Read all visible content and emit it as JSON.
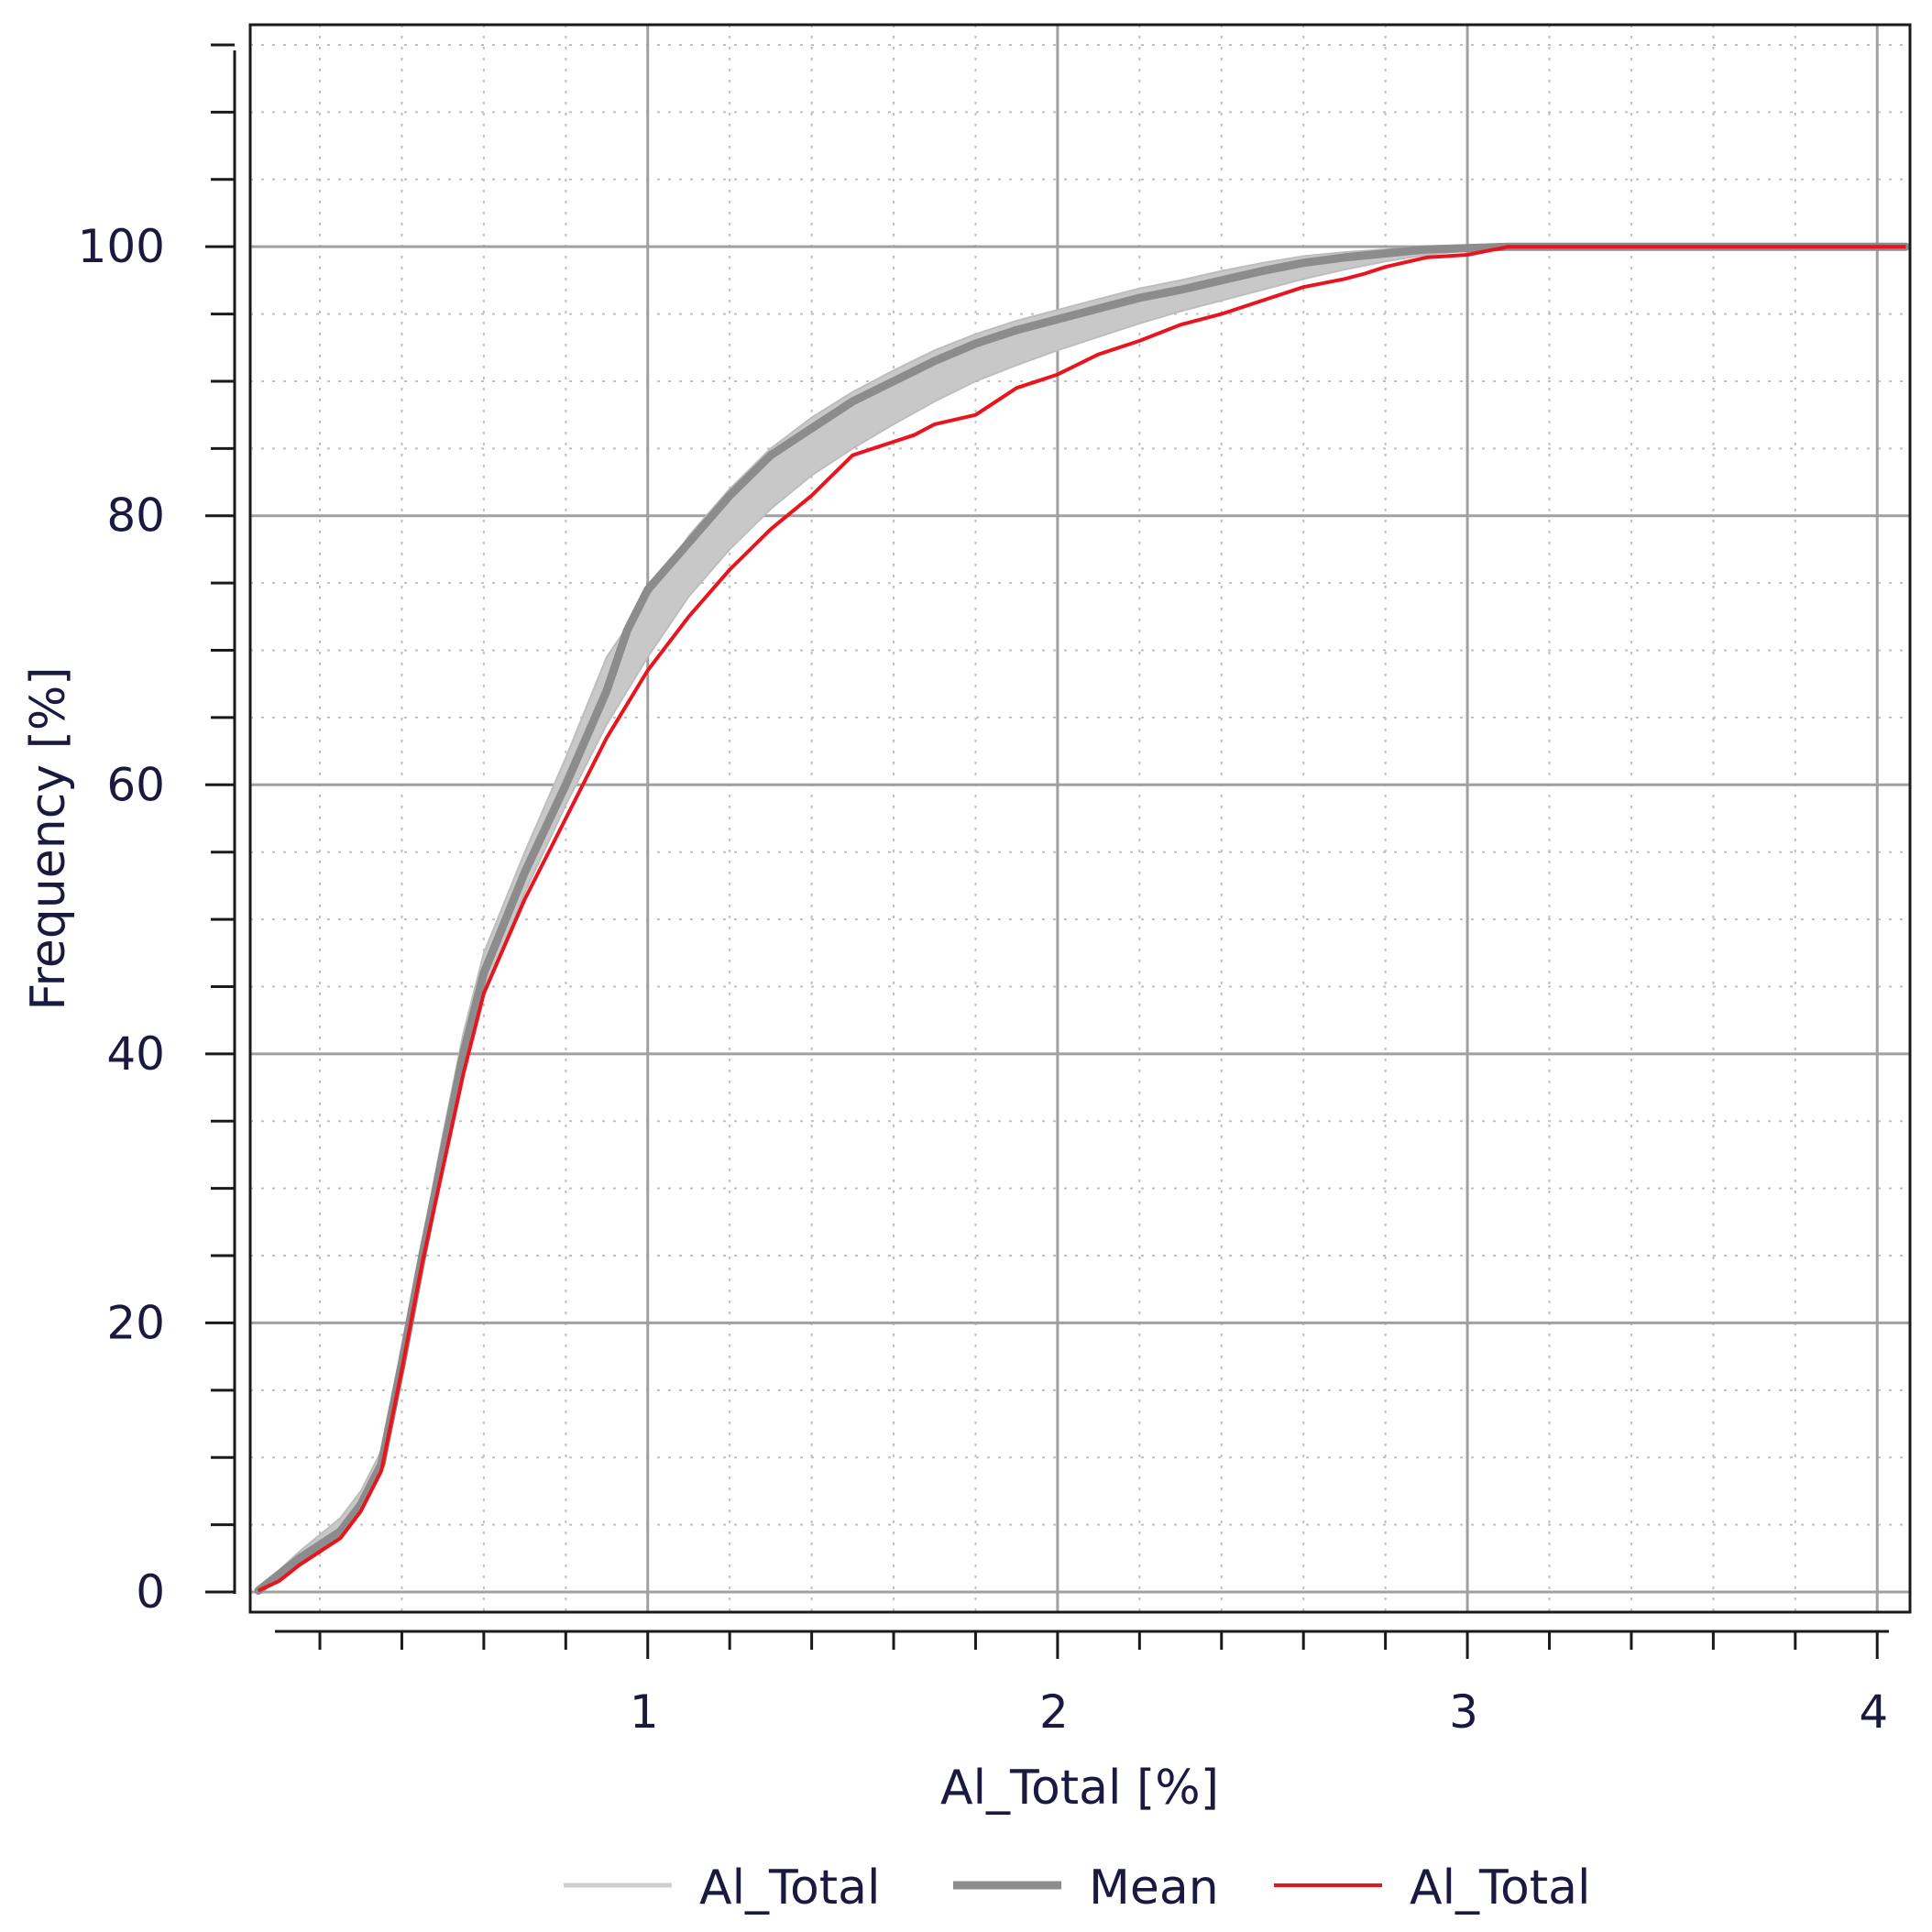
{
  "chart_data": {
    "type": "line",
    "title": "",
    "xlabel": "Al_Total [%]",
    "ylabel": "Frequency [%]",
    "xlim": [
      0.03,
      4.08
    ],
    "ylim": [
      -1.5,
      116.5
    ],
    "x_ticks": [
      1,
      2,
      3,
      4
    ],
    "y_ticks": [
      0,
      20,
      40,
      60,
      80,
      100
    ],
    "x_minor_step": 0.2,
    "y_minor_step": 5,
    "grid": true,
    "legend_position": "bottom",
    "colors": {
      "band": "#c8c8c8",
      "mean": "#8c8c8c",
      "sample": "#e8141e",
      "grid_major": "#a0a0a0",
      "grid_minor": "#c0c0c0"
    },
    "legend": [
      {
        "label": "Al_Total",
        "color": "#cfcfcf",
        "width": 5
      },
      {
        "label": "Mean",
        "color": "#8c8c8c",
        "width": 9
      },
      {
        "label": "Al_Total",
        "color": "#e8141e",
        "width": 4
      }
    ],
    "series": [
      {
        "name": "Al_Total",
        "role": "band",
        "x": [
          0.05,
          0.15,
          0.25,
          0.3,
          0.35,
          0.4,
          0.45,
          0.5,
          0.55,
          0.6,
          0.7,
          0.8,
          0.9,
          1.0,
          1.1,
          1.2,
          1.3,
          1.4,
          1.5,
          1.6,
          1.7,
          1.8,
          1.9,
          2.0,
          2.1,
          2.2,
          2.3,
          2.4,
          2.5,
          2.6,
          2.7,
          2.8,
          2.9,
          3.0,
          3.1,
          3.5,
          4.0,
          4.07
        ],
        "upper": [
          0.2,
          3.0,
          5.5,
          7.5,
          10.5,
          18.0,
          26.0,
          34.0,
          41.5,
          47.5,
          55.0,
          62.0,
          69.5,
          74.0,
          78.5,
          82.0,
          85.0,
          87.3,
          89.2,
          90.8,
          92.3,
          93.5,
          94.5,
          95.3,
          96.1,
          96.9,
          97.5,
          98.2,
          98.8,
          99.3,
          99.6,
          99.8,
          100,
          100,
          100,
          100,
          100,
          100
        ],
        "lower": [
          0.0,
          2.0,
          4.0,
          6.0,
          9.0,
          16.0,
          24.0,
          31.5,
          38.5,
          44.5,
          52.0,
          58.5,
          64.5,
          69.5,
          74.0,
          77.5,
          80.5,
          83.0,
          85.0,
          86.8,
          88.5,
          90.0,
          91.2,
          92.3,
          93.3,
          94.3,
          95.2,
          96.0,
          96.8,
          97.6,
          98.3,
          98.9,
          99.4,
          99.7,
          99.9,
          100,
          100,
          100
        ]
      },
      {
        "name": "Mean",
        "role": "mean",
        "x": [
          0.05,
          0.1,
          0.15,
          0.2,
          0.25,
          0.3,
          0.35,
          0.4,
          0.45,
          0.5,
          0.55,
          0.6,
          0.7,
          0.8,
          0.9,
          0.95,
          1.0,
          1.1,
          1.2,
          1.3,
          1.4,
          1.5,
          1.6,
          1.7,
          1.8,
          1.9,
          2.0,
          2.1,
          2.2,
          2.3,
          2.4,
          2.5,
          2.6,
          2.7,
          2.8,
          2.9,
          3.0,
          3.1,
          3.5,
          4.0,
          4.07
        ],
        "y": [
          0.1,
          1.3,
          2.5,
          3.5,
          4.5,
          6.5,
          9.5,
          17.0,
          25.0,
          32.5,
          40.0,
          46.0,
          53.5,
          60.0,
          67.0,
          71.5,
          74.5,
          78.0,
          81.5,
          84.5,
          86.5,
          88.5,
          90.0,
          91.5,
          92.8,
          93.8,
          94.6,
          95.4,
          96.2,
          96.8,
          97.5,
          98.2,
          98.8,
          99.2,
          99.5,
          99.8,
          99.9,
          100,
          100,
          100,
          100
        ]
      },
      {
        "name": "Al_Total",
        "role": "sample",
        "x": [
          0.05,
          0.1,
          0.15,
          0.2,
          0.25,
          0.3,
          0.35,
          0.4,
          0.45,
          0.5,
          0.55,
          0.6,
          0.7,
          0.8,
          0.9,
          1.0,
          1.1,
          1.2,
          1.3,
          1.4,
          1.5,
          1.6,
          1.65,
          1.7,
          1.8,
          1.9,
          2.0,
          2.1,
          2.2,
          2.3,
          2.4,
          2.5,
          2.6,
          2.7,
          2.75,
          2.8,
          2.9,
          3.0,
          3.1,
          3.5,
          4.0,
          4.07
        ],
        "y": [
          0.1,
          0.8,
          2.0,
          3.0,
          4.0,
          6.0,
          9.0,
          16.5,
          24.5,
          31.5,
          38.5,
          44.5,
          51.5,
          57.5,
          63.5,
          68.5,
          72.5,
          76.0,
          79.0,
          81.5,
          84.5,
          85.5,
          86.0,
          86.8,
          87.5,
          89.5,
          90.5,
          92.0,
          93.0,
          94.2,
          95.0,
          96.0,
          97.0,
          97.6,
          98.0,
          98.5,
          99.2,
          99.4,
          100,
          100,
          100,
          100
        ]
      }
    ]
  }
}
